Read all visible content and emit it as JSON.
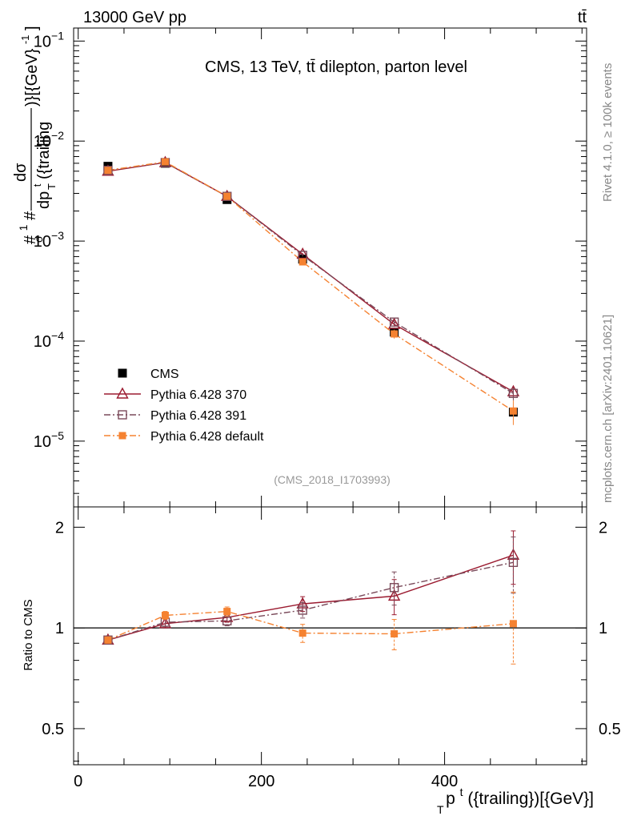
{
  "header": {
    "left": "13000 GeV pp",
    "right": "tt̄"
  },
  "side_labels": {
    "rivet": "Rivet 4.1.0, ≥ 100k events",
    "mcplots": "mcplots.cern.ch [arXiv:2401.10621]"
  },
  "colors": {
    "cms": "#000000",
    "p370": "#9b1b30",
    "p391": "#7a4a5a",
    "pdef": "#f58231",
    "axis": "#000000",
    "analysis_label": "#999999"
  },
  "chart_data": [
    {
      "type": "scatter",
      "panel": "main",
      "title": "CMS, 13 TeV, tt̄ dilepton, parton level",
      "analysis_id": "(CMS_2018_I1703993)",
      "ylabel_parts": {
        "prefix": "#",
        "one": "1",
        "hash": "#",
        "sigma": "σ",
        "dsigma": "dσ",
        "dp": "dp",
        "sup": "t",
        "sub": "T",
        "paren": "({trailing",
        "suffix": ")}[{GeV}",
        "exp": "-1",
        "close": "]"
      },
      "yscale": "log",
      "xlim": [
        -5,
        555
      ],
      "ylim": [
        2.2e-06,
        0.135
      ],
      "yticks": [
        {
          "value": 1e-05,
          "base": "10",
          "exp": "−5"
        },
        {
          "value": 0.0001,
          "base": "10",
          "exp": "−4"
        },
        {
          "value": 0.001,
          "base": "10",
          "exp": "−3"
        },
        {
          "value": 0.01,
          "base": "10",
          "exp": "−2"
        },
        {
          "value": 0.1,
          "base": "10",
          "exp": "−1"
        }
      ],
      "x": [
        32.5,
        95,
        162.5,
        245,
        345,
        475
      ],
      "series": [
        {
          "name": "CMS",
          "marker": "square-filled",
          "line": "none",
          "values": [
            0.0056,
            0.006,
            0.0026,
            0.00066,
            0.000123,
            1.95e-05
          ]
        },
        {
          "name": "Pythia 6.428 370",
          "marker": "triangle-open",
          "line": "solid",
          "values": [
            0.005,
            0.0061,
            0.0028,
            0.00074,
            0.000147,
            3.12e-05
          ],
          "errors": [
            0.0001,
            0.0001,
            5e-05,
            2e-05,
            8e-06,
            4.5e-06
          ]
        },
        {
          "name": "Pythia 6.428 391",
          "marker": "square-open",
          "line": "dashdot",
          "values": [
            0.0051,
            0.0061,
            0.0028,
            0.00072,
            0.000155,
            3e-05
          ],
          "errors": [
            0.0001,
            0.0001,
            5e-05,
            2e-05,
            8e-06,
            4.5e-06
          ]
        },
        {
          "name": "Pythia 6.428 default",
          "marker": "square-filled-small",
          "line": "dashdot",
          "values": [
            0.0051,
            0.0062,
            0.0028,
            0.00062,
            0.000118,
            2e-05
          ],
          "errors": [
            0.0001,
            0.0001,
            5e-05,
            3e-05,
            1.2e-05,
            5.5e-06
          ]
        }
      ]
    },
    {
      "type": "scatter",
      "panel": "ratio",
      "ylabel": "Ratio to CMS",
      "xlabel_parts": {
        "p": "p",
        "sup": "t",
        "sub": "T",
        "rest": "({trailing})[{GeV}]"
      },
      "xlim": [
        -5,
        555
      ],
      "ylim": [
        0.39,
        2.3
      ],
      "yscale": "log",
      "yticks": [
        0.5,
        1,
        2
      ],
      "xticks": [
        0,
        200,
        400
      ],
      "x": [
        32.5,
        95,
        162.5,
        245,
        345,
        475
      ],
      "series": [
        {
          "name": "Pythia 6.428 370",
          "values": [
            0.92,
            1.03,
            1.075,
            1.18,
            1.245,
            1.65
          ],
          "errors": [
            0.02,
            0.03,
            0.035,
            0.06,
            0.15,
            0.3
          ]
        },
        {
          "name": "Pythia 6.428 391",
          "values": [
            0.92,
            1.04,
            1.05,
            1.13,
            1.32,
            1.57
          ],
          "errors": [
            0.02,
            0.03,
            0.035,
            0.06,
            0.15,
            0.3
          ]
        },
        {
          "name": "Pythia 6.428 default",
          "values": [
            0.92,
            1.09,
            1.12,
            0.965,
            0.96,
            1.03
          ],
          "errors": [
            0.02,
            0.03,
            0.035,
            0.06,
            0.1,
            0.25
          ]
        }
      ]
    }
  ]
}
